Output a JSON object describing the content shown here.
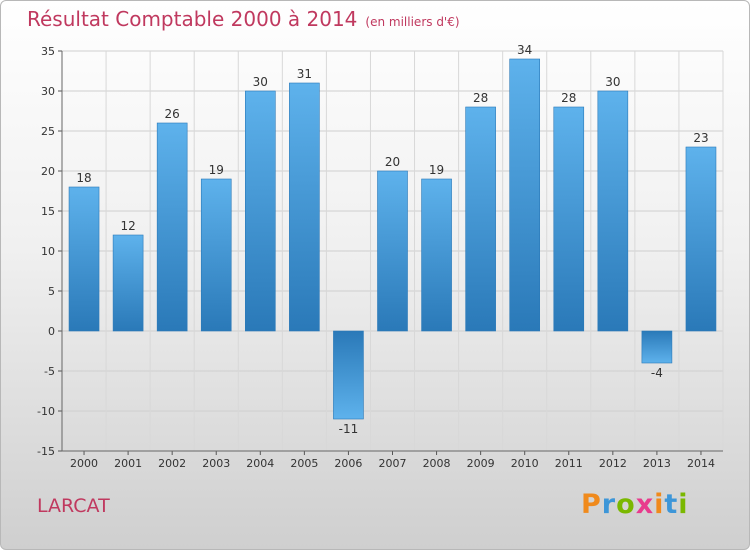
{
  "chart_data": {
    "type": "bar",
    "title": "Résultat Comptable 2000 à 2014",
    "subtitle": "(en milliers d'€)",
    "xlabel": "",
    "ylabel": "",
    "ylim": [
      -15,
      35
    ],
    "yticks": [
      35,
      30,
      25,
      20,
      15,
      10,
      5,
      0,
      -5,
      -10,
      -15
    ],
    "grid": true,
    "categories": [
      "2000",
      "2001",
      "2002",
      "2003",
      "2004",
      "2005",
      "2006",
      "2007",
      "2008",
      "2009",
      "2010",
      "2011",
      "2012",
      "2013",
      "2014"
    ],
    "values": [
      18,
      12,
      26,
      19,
      30,
      31,
      -11,
      20,
      19,
      28,
      34,
      28,
      30,
      -4,
      23
    ],
    "bar_color": "#3d96d8"
  },
  "footer": {
    "commune": "LARCAT",
    "logo_text": "Proxiti",
    "logo_colors": [
      "#f08a1c",
      "#3d96d8",
      "#7ab800",
      "#e83b8d",
      "#f08a1c",
      "#3d96d8",
      "#7ab800"
    ]
  }
}
